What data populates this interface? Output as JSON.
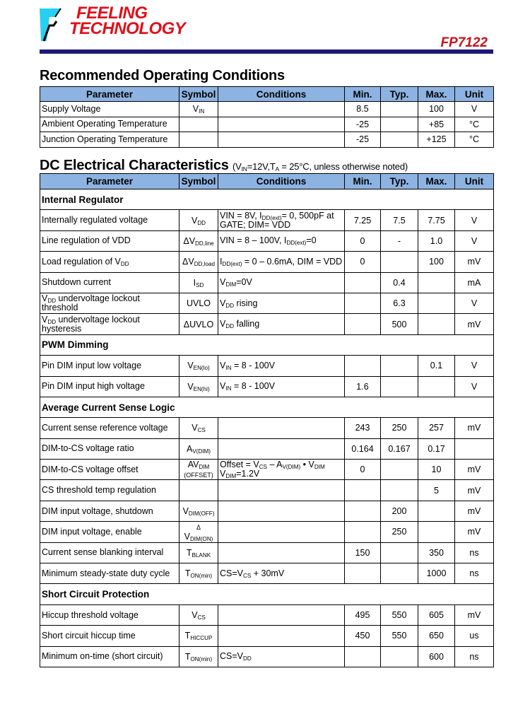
{
  "header": {
    "logo_line1": "FEELING",
    "logo_line2": "TECHNOLOGY",
    "part_number": "FP7122",
    "rule_color": "#1a1a7a",
    "brand_color": "#e0101a"
  },
  "columns": [
    "Parameter",
    "Symbol",
    "Conditions",
    "Min.",
    "Typ.",
    "Max.",
    "Unit"
  ],
  "header_fill": "#8db3e2",
  "recommended": {
    "title": "Recommended Operating Conditions",
    "rows": [
      {
        "param": "Supply Voltage",
        "symbol": [
          "V",
          {
            "sub": "IN"
          }
        ],
        "cond": "",
        "min": "8.5",
        "typ": "",
        "max": "100",
        "unit": "V"
      },
      {
        "param": "Ambient Operating Temperature",
        "symbol": "",
        "cond": "",
        "min": "-25",
        "typ": "",
        "max": "+85",
        "unit": "°C"
      },
      {
        "param": "Junction Operating Temperature",
        "symbol": "",
        "cond": "",
        "min": "-25",
        "typ": "",
        "max": "+125",
        "unit": "°C"
      }
    ]
  },
  "dc": {
    "title": "DC Electrical Characteristics",
    "note": [
      "(V",
      {
        "sub": "IN"
      },
      "=12V,T",
      {
        "sub": "A"
      },
      " = 25°C, unless otherwise noted)"
    ],
    "rows": [
      {
        "section": "Internal Regulator"
      },
      {
        "param": "Internally regulated voltage",
        "symbol": [
          "V",
          {
            "sub": "DD"
          }
        ],
        "cond": [
          "VIN = 8V, I",
          {
            "sub": "DD(ext)"
          },
          "= 0, 500pF at GATE; DIM= VDD"
        ],
        "min": "7.25",
        "typ": "7.5",
        "max": "7.75",
        "unit": "V"
      },
      {
        "param": "Line regulation of VDD",
        "symbol": [
          "ΔV",
          {
            "sub": "DD,line"
          }
        ],
        "cond": [
          "VIN = 8 – 100V, I",
          {
            "sub": "DD(ext)"
          },
          "=0"
        ],
        "min": "0",
        "typ": "-",
        "max": "1.0",
        "unit": "V"
      },
      {
        "param": [
          "Load regulation of V",
          {
            "sub": "DD"
          }
        ],
        "symbol": [
          "ΔV",
          {
            "sub": "DD,load"
          }
        ],
        "cond": [
          "I",
          {
            "sub": "DD(ext)"
          },
          " = 0 – 0.6mA, DIM = VDD"
        ],
        "min": "0",
        "typ": "",
        "max": "100",
        "unit": "mV"
      },
      {
        "param": "Shutdown current",
        "symbol": [
          "I",
          {
            "sub": "SD"
          }
        ],
        "cond": [
          "V",
          {
            "sub": "DIM"
          },
          "=0V"
        ],
        "min": "",
        "typ": "0.4",
        "max": "",
        "unit": "mA"
      },
      {
        "param": [
          "V",
          {
            "sub": "DD"
          },
          " undervoltage lockout threshold"
        ],
        "symbol": "UVLO",
        "cond": [
          "V",
          {
            "sub": "DD"
          },
          " rising"
        ],
        "min": "",
        "typ": "6.3",
        "max": "",
        "unit": "V"
      },
      {
        "param": [
          "V",
          {
            "sub": "DD"
          },
          " undervoltage lockout hysteresis"
        ],
        "symbol": "ΔUVLO",
        "cond": [
          "V",
          {
            "sub": "DD"
          },
          " falling"
        ],
        "min": "",
        "typ": "500",
        "max": "",
        "unit": "mV"
      },
      {
        "section": "PWM Dimming"
      },
      {
        "param": "Pin DIM input low voltage",
        "symbol": [
          "V",
          {
            "sub": "EN(lo)"
          }
        ],
        "cond": [
          "V",
          {
            "sub": "IN"
          },
          " = 8 - 100V"
        ],
        "min": "",
        "typ": "",
        "max": "0.1",
        "unit": "V"
      },
      {
        "param": "Pin DIM input high voltage",
        "symbol": [
          "V",
          {
            "sub": "EN(hi)"
          }
        ],
        "cond": [
          "V",
          {
            "sub": "IN"
          },
          " = 8 - 100V"
        ],
        "min": "1.6",
        "typ": "",
        "max": "",
        "unit": "V"
      },
      {
        "section": "Average Current Sense Logic"
      },
      {
        "param": "Current sense reference voltage",
        "symbol": [
          "V",
          {
            "sub": "CS"
          }
        ],
        "cond": "",
        "min": "243",
        "typ": "250",
        "max": "257",
        "unit": "mV"
      },
      {
        "param": "DIM-to-CS voltage ratio",
        "symbol": [
          "A",
          {
            "sub": "V(DIM)"
          }
        ],
        "cond": "",
        "min": "0.164",
        "typ": "0.167",
        "max": "0.17",
        "unit": ""
      },
      {
        "param": "DIM-to-CS voltage offset",
        "symbol": [
          "AV",
          {
            "sub": "DIM"
          },
          {
            "line": "(OFFSET)"
          }
        ],
        "cond": [
          "Offset = V",
          {
            "sub": "CS"
          },
          " – A",
          {
            "sub": "V(DIM)"
          },
          " • V",
          {
            "sub": "DIM"
          },
          {
            "br": ""
          },
          "V",
          {
            "sub": "DIM"
          },
          "=1.2V"
        ],
        "min": "0",
        "typ": "",
        "max": "10",
        "unit": "mV"
      },
      {
        "param": "CS threshold temp regulation",
        "symbol": "",
        "cond": "",
        "min": "",
        "typ": "",
        "max": "5",
        "unit": "mV"
      },
      {
        "param": "DIM input voltage, shutdown",
        "symbol": [
          "V",
          {
            "sub": "DIM(OFF)"
          }
        ],
        "cond": "",
        "min": "",
        "typ": "200",
        "max": "",
        "unit": "mV"
      },
      {
        "param": "DIM input voltage, enable",
        "symbol": [
          {
            "small": "Δ"
          },
          " V",
          {
            "sub": "DIM(ON)"
          }
        ],
        "cond": "",
        "min": "",
        "typ": "250",
        "max": "",
        "unit": "mV"
      },
      {
        "param": "Current sense blanking interval",
        "symbol": [
          "T",
          {
            "sub": "BLANK"
          }
        ],
        "cond": "",
        "min": "150",
        "typ": "",
        "max": "350",
        "unit": "ns"
      },
      {
        "param": "Minimum steady-state duty cycle",
        "symbol": [
          "T",
          {
            "sub": "ON(min)"
          }
        ],
        "cond": [
          "CS=V",
          {
            "sub": "CS"
          },
          " + 30mV"
        ],
        "min": "",
        "typ": "",
        "max": "1000",
        "unit": "ns"
      },
      {
        "section": "Short Circuit Protection"
      },
      {
        "param": "Hiccup threshold voltage",
        "symbol": [
          "V",
          {
            "sub": "CS"
          }
        ],
        "cond": "",
        "min": "495",
        "typ": "550",
        "max": "605",
        "unit": "mV"
      },
      {
        "param": "Short circuit hiccup time",
        "symbol": [
          "T",
          {
            "sub": "HICCUP"
          }
        ],
        "cond": "",
        "min": "450",
        "typ": "550",
        "max": "650",
        "unit": "us"
      },
      {
        "param": "Minimum on-time (short circuit)",
        "symbol": [
          "T",
          {
            "sub": "ON(min)"
          }
        ],
        "cond": [
          "CS=V",
          {
            "sub": "DD"
          }
        ],
        "min": "",
        "typ": "",
        "max": "600",
        "unit": "ns"
      }
    ]
  }
}
